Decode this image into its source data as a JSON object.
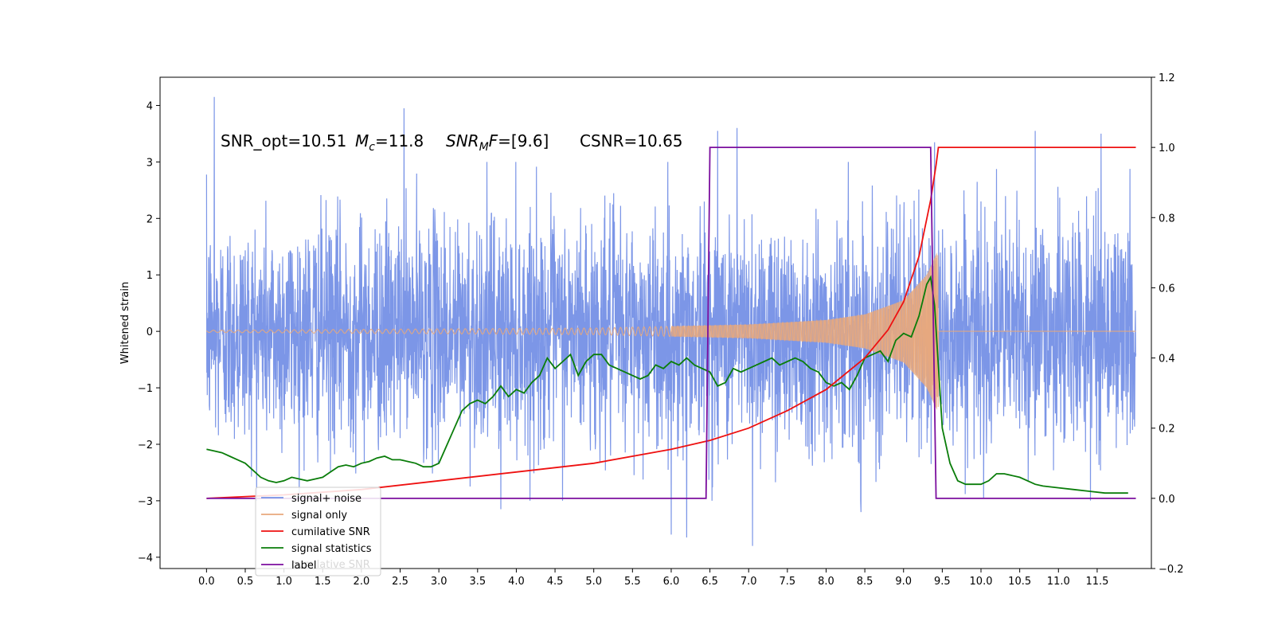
{
  "chart_data": {
    "type": "line",
    "ylabel": "Whitened strain",
    "x_range": [
      -0.6,
      12.2
    ],
    "xlim": [
      0.0,
      12.0
    ],
    "ylim": [
      -4.2,
      4.5
    ],
    "ylim_right": [
      -0.2,
      1.2
    ],
    "x_ticks": [
      "0.0",
      "0.5",
      "1.0",
      "1.5",
      "2.0",
      "2.5",
      "3.0",
      "3.5",
      "4.0",
      "4.5",
      "5.0",
      "5.5",
      "6.0",
      "6.5",
      "7.0",
      "7.5",
      "8.0",
      "8.5",
      "9.0",
      "9.5",
      "10.0",
      "10.5",
      "11.0",
      "11.5"
    ],
    "y_ticks": [
      "−4",
      "−3",
      "−2",
      "−1",
      "0",
      "1",
      "2",
      "3",
      "4"
    ],
    "y_ticks_right": [
      "−0.2",
      "0.0",
      "0.2",
      "0.4",
      "0.6",
      "0.8",
      "1.0",
      "1.2"
    ],
    "annotations": {
      "snr_opt": "SNR_opt=10.51",
      "mc_symbol": "M",
      "mc_sub": "c",
      "mc_value": "=11.8",
      "snrmf_symbol": "SNR",
      "snrmf_sub": "M",
      "snrmf_f": "F",
      "snrmf_value": "=[9.6]",
      "csnr": "CSNR=10.65"
    },
    "legend": {
      "placement": "lower-left",
      "entries": [
        "signal+ noise",
        "signal only",
        "cumilative SNR",
        "signal statistics",
        "label"
      ],
      "ghost_text": "cumilative SNR"
    },
    "series": [
      {
        "name": "signal+ noise",
        "axis": "left",
        "color": "#7590e6",
        "t_end": 12.0,
        "amplitude_sigma": 1.0,
        "peaks": [
          [
            0.1,
            4.15
          ],
          [
            2.55,
            3.95
          ],
          [
            6.6,
            3.55
          ],
          [
            6.85,
            3.6
          ],
          [
            9.4,
            3.35
          ],
          [
            10.7,
            3.55
          ],
          [
            11.55,
            3.5
          ],
          [
            7.05,
            -3.8
          ],
          [
            6.0,
            -3.6
          ],
          [
            6.2,
            -3.65
          ],
          [
            3.8,
            -3.15
          ],
          [
            8.45,
            -3.2
          ]
        ]
      },
      {
        "name": "signal only",
        "axis": "left",
        "color": "#e8a87c",
        "t_start": 0.0,
        "t_merger": 9.45,
        "amplitude_envelope": [
          [
            0.0,
            0.02
          ],
          [
            5.0,
            0.06
          ],
          [
            7.0,
            0.12
          ],
          [
            8.0,
            0.2
          ],
          [
            8.5,
            0.3
          ],
          [
            9.0,
            0.55
          ],
          [
            9.3,
            1.0
          ],
          [
            9.45,
            1.45
          ]
        ]
      },
      {
        "name": "cumilative SNR",
        "axis": "right",
        "color": "#ee1111",
        "x": [
          0.0,
          1.0,
          2.0,
          3.0,
          4.0,
          5.0,
          6.0,
          6.5,
          7.0,
          7.5,
          8.0,
          8.5,
          8.8,
          9.0,
          9.2,
          9.35,
          9.42,
          9.45,
          9.5,
          10.0,
          11.0,
          12.0
        ],
        "y": [
          0.0,
          0.01,
          0.025,
          0.05,
          0.075,
          0.1,
          0.14,
          0.165,
          0.2,
          0.25,
          0.31,
          0.4,
          0.48,
          0.56,
          0.69,
          0.85,
          0.95,
          1.0,
          1.0,
          1.0,
          1.0,
          1.0
        ]
      },
      {
        "name": "signal statistics",
        "axis": "right",
        "color": "#0a7d0a",
        "x": [
          0.0,
          0.1,
          0.2,
          0.3,
          0.4,
          0.5,
          0.6,
          0.7,
          0.8,
          0.9,
          1.0,
          1.1,
          1.2,
          1.3,
          1.4,
          1.5,
          1.6,
          1.7,
          1.8,
          1.9,
          2.0,
          2.1,
          2.2,
          2.3,
          2.4,
          2.5,
          2.6,
          2.7,
          2.8,
          2.9,
          3.0,
          3.1,
          3.2,
          3.3,
          3.4,
          3.5,
          3.6,
          3.7,
          3.8,
          3.9,
          4.0,
          4.1,
          4.2,
          4.3,
          4.4,
          4.5,
          4.6,
          4.7,
          4.8,
          4.9,
          5.0,
          5.1,
          5.2,
          5.3,
          5.4,
          5.5,
          5.6,
          5.7,
          5.8,
          5.9,
          6.0,
          6.1,
          6.2,
          6.3,
          6.4,
          6.5,
          6.6,
          6.7,
          6.8,
          6.9,
          7.0,
          7.1,
          7.2,
          7.3,
          7.4,
          7.5,
          7.6,
          7.7,
          7.8,
          7.9,
          8.0,
          8.1,
          8.2,
          8.3,
          8.4,
          8.5,
          8.6,
          8.7,
          8.8,
          8.9,
          9.0,
          9.1,
          9.2,
          9.3,
          9.35,
          9.4,
          9.5,
          9.6,
          9.7,
          9.8,
          10.0,
          10.1,
          10.2,
          10.3,
          10.5,
          10.7,
          10.8,
          11.0,
          11.2,
          11.4,
          11.6,
          11.7,
          11.9
        ],
        "y": [
          0.14,
          0.135,
          0.13,
          0.12,
          0.11,
          0.1,
          0.08,
          0.06,
          0.05,
          0.045,
          0.05,
          0.06,
          0.055,
          0.05,
          0.055,
          0.06,
          0.075,
          0.09,
          0.095,
          0.09,
          0.1,
          0.105,
          0.115,
          0.12,
          0.11,
          0.11,
          0.105,
          0.1,
          0.09,
          0.09,
          0.1,
          0.15,
          0.2,
          0.25,
          0.27,
          0.28,
          0.27,
          0.29,
          0.32,
          0.29,
          0.31,
          0.3,
          0.33,
          0.35,
          0.4,
          0.37,
          0.39,
          0.41,
          0.35,
          0.39,
          0.41,
          0.41,
          0.38,
          0.37,
          0.36,
          0.35,
          0.34,
          0.35,
          0.38,
          0.37,
          0.39,
          0.38,
          0.4,
          0.38,
          0.37,
          0.36,
          0.32,
          0.33,
          0.37,
          0.36,
          0.37,
          0.38,
          0.39,
          0.4,
          0.38,
          0.39,
          0.4,
          0.39,
          0.37,
          0.36,
          0.33,
          0.32,
          0.33,
          0.31,
          0.35,
          0.4,
          0.41,
          0.42,
          0.39,
          0.45,
          0.47,
          0.46,
          0.52,
          0.61,
          0.63,
          0.55,
          0.2,
          0.1,
          0.05,
          0.04,
          0.04,
          0.05,
          0.07,
          0.07,
          0.06,
          0.04,
          0.035,
          0.03,
          0.025,
          0.02,
          0.015,
          0.015,
          0.015
        ]
      },
      {
        "name": "label",
        "axis": "right",
        "color": "#7b0e9e",
        "x": [
          0.0,
          6.45,
          6.5,
          9.35,
          9.42,
          12.0
        ],
        "y": [
          0.0,
          0.0,
          1.0,
          1.0,
          0.0,
          0.0
        ]
      }
    ]
  }
}
